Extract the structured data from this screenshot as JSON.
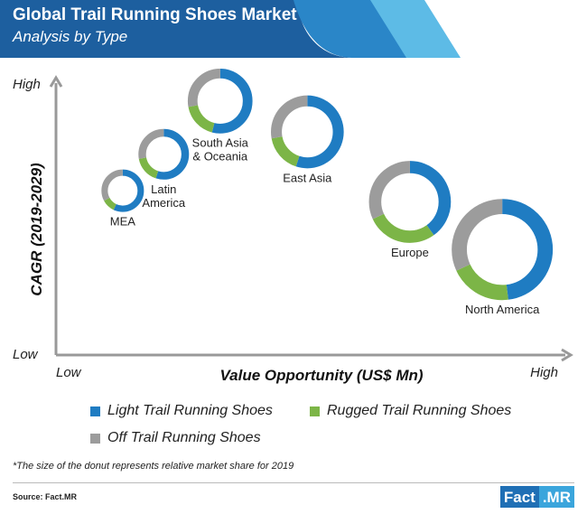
{
  "header": {
    "title": "Global Trail Running Shoes Market",
    "subtitle": "Analysis by Type"
  },
  "colors": {
    "light": "#1f7cc2",
    "rugged": "#7cb547",
    "off": "#9c9c9c",
    "header_dark": "#1d5f9f",
    "header_mid": "#2a86c8",
    "header_light": "#5dbbe6"
  },
  "chart_data": {
    "type": "bubble-donut",
    "xlabel": "Value Opportunity (US$ Mn)",
    "ylabel": "CAGR (2019-2029)",
    "x_ticks": {
      "low": "Low",
      "high": "High"
    },
    "y_ticks": {
      "low": "Low",
      "high": "High"
    },
    "series_names": [
      "Light Trail Running Shoes",
      "Rugged Trail Running Shoes",
      "Off Trail Running Shoes"
    ],
    "regions": [
      {
        "name": "MEA",
        "label_lines": [
          "MEA"
        ],
        "value_opportunity": 0.13,
        "cagr": 0.59,
        "relative_size": 0.42,
        "shares": [
          0.57,
          0.1,
          0.33
        ]
      },
      {
        "name": "Latin America",
        "label_lines": [
          "Latin",
          "America"
        ],
        "value_opportunity": 0.21,
        "cagr": 0.72,
        "relative_size": 0.5,
        "shares": [
          0.55,
          0.17,
          0.28
        ]
      },
      {
        "name": "South Asia & Oceania",
        "label_lines": [
          "South Asia",
          "& Oceania"
        ],
        "value_opportunity": 0.32,
        "cagr": 0.91,
        "relative_size": 0.64,
        "shares": [
          0.54,
          0.18,
          0.28
        ]
      },
      {
        "name": "East Asia",
        "label_lines": [
          "East Asia"
        ],
        "value_opportunity": 0.49,
        "cagr": 0.8,
        "relative_size": 0.72,
        "shares": [
          0.55,
          0.17,
          0.28
        ]
      },
      {
        "name": "Europe",
        "label_lines": [
          "Europe"
        ],
        "value_opportunity": 0.69,
        "cagr": 0.55,
        "relative_size": 0.81,
        "shares": [
          0.4,
          0.28,
          0.32
        ]
      },
      {
        "name": "North America",
        "label_lines": [
          "North America"
        ],
        "value_opportunity": 0.87,
        "cagr": 0.38,
        "relative_size": 1.0,
        "shares": [
          0.48,
          0.2,
          0.32
        ]
      }
    ]
  },
  "legend": {
    "light": "Light Trail Running Shoes",
    "rugged": "Rugged Trail Running Shoes",
    "off": "Off Trail Running Shoes"
  },
  "footnote": "*The size of the donut represents relative market share for 2019",
  "source": "Source: Fact.MR",
  "brand": {
    "left": "Fact",
    "right": ".MR"
  }
}
